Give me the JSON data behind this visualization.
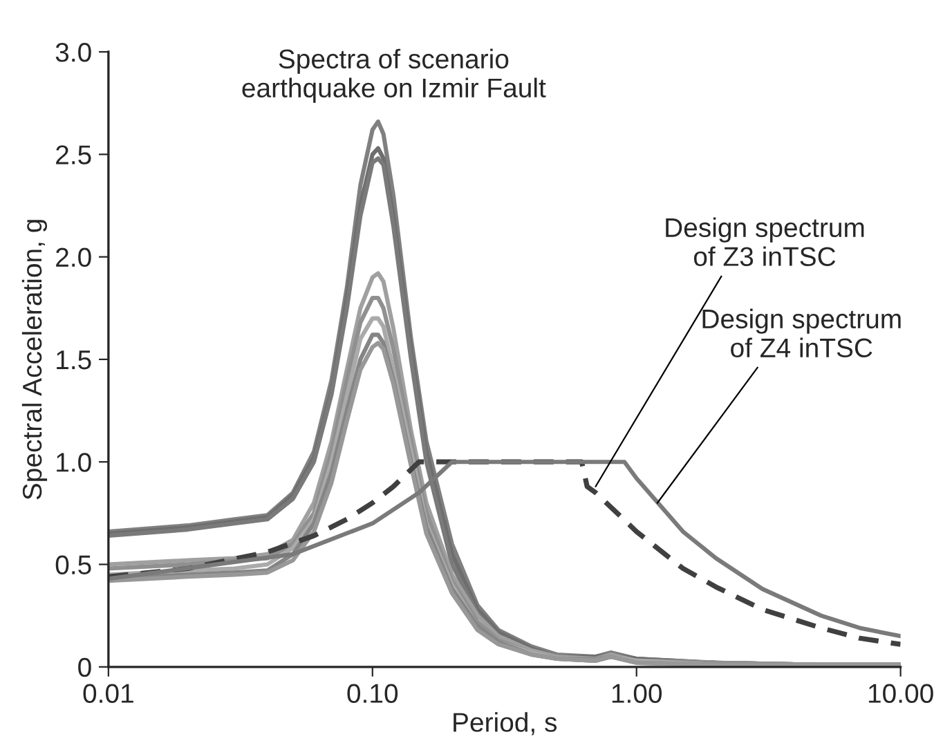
{
  "chart_data": {
    "type": "line",
    "xlabel": "Period, s",
    "ylabel": "Spectral Acceleration, g",
    "log": "x",
    "xlim": [
      0.01,
      10
    ],
    "xticks": [
      0.01,
      {
        "value": 0.1,
        "label": "0.10"
      },
      {
        "value": 1,
        "label": "1.00"
      },
      {
        "value": 10,
        "label": "10.00"
      }
    ],
    "ylim": [
      0,
      3
    ],
    "yticks": [
      0,
      0.5,
      {
        "value": 1,
        "label": "1.0"
      },
      1.5,
      {
        "value": 2,
        "label": "2.0"
      },
      2.5,
      {
        "value": 3,
        "label": "3.0"
      }
    ],
    "grid": false,
    "marker": "none",
    "series": [
      {
        "color": "#808080",
        "x": [
          0.01,
          0.02,
          0.03,
          0.04,
          0.05,
          0.06,
          0.07,
          0.08,
          0.09,
          0.1,
          0.105,
          0.11,
          0.12,
          0.14,
          0.16,
          0.2,
          0.25,
          0.3,
          0.4,
          0.5,
          0.7,
          0.8,
          1,
          2,
          5,
          10
        ],
        "values": [
          0.66,
          0.69,
          0.72,
          0.74,
          0.85,
          1.05,
          1.4,
          1.85,
          2.35,
          2.62,
          2.66,
          2.6,
          2.3,
          1.6,
          1.1,
          0.6,
          0.3,
          0.18,
          0.1,
          0.06,
          0.05,
          0.07,
          0.04,
          0.02,
          0.01,
          0.01
        ]
      },
      {
        "color": "#6e6e6e",
        "x": [
          0.01,
          0.02,
          0.03,
          0.04,
          0.05,
          0.06,
          0.07,
          0.08,
          0.09,
          0.1,
          0.105,
          0.11,
          0.12,
          0.14,
          0.16,
          0.2,
          0.25,
          0.3,
          0.4,
          0.5,
          0.7,
          0.8,
          1,
          2,
          5,
          10
        ],
        "values": [
          0.65,
          0.68,
          0.71,
          0.73,
          0.84,
          1.02,
          1.35,
          1.8,
          2.25,
          2.5,
          2.53,
          2.48,
          2.2,
          1.55,
          1.05,
          0.55,
          0.28,
          0.17,
          0.09,
          0.05,
          0.05,
          0.06,
          0.04,
          0.02,
          0.01,
          0.01
        ]
      },
      {
        "color": "#7a7a7a",
        "x": [
          0.01,
          0.02,
          0.03,
          0.04,
          0.05,
          0.06,
          0.07,
          0.08,
          0.09,
          0.1,
          0.105,
          0.11,
          0.12,
          0.14,
          0.16,
          0.2,
          0.25,
          0.3,
          0.4,
          0.5,
          0.7,
          0.8,
          1,
          2,
          5,
          10
        ],
        "values": [
          0.64,
          0.67,
          0.7,
          0.72,
          0.82,
          1.0,
          1.33,
          1.75,
          2.2,
          2.46,
          2.48,
          2.45,
          2.15,
          1.5,
          1.0,
          0.5,
          0.26,
          0.15,
          0.08,
          0.05,
          0.04,
          0.06,
          0.03,
          0.02,
          0.01,
          0.01
        ]
      },
      {
        "color": "#a0a0a0",
        "x": [
          0.01,
          0.02,
          0.03,
          0.04,
          0.05,
          0.06,
          0.07,
          0.08,
          0.09,
          0.1,
          0.105,
          0.11,
          0.12,
          0.14,
          0.16,
          0.2,
          0.25,
          0.3,
          0.4,
          0.5,
          0.7,
          0.8,
          1,
          2,
          5,
          10
        ],
        "values": [
          0.5,
          0.52,
          0.53,
          0.55,
          0.62,
          0.8,
          1.1,
          1.45,
          1.75,
          1.9,
          1.92,
          1.88,
          1.65,
          1.15,
          0.8,
          0.45,
          0.25,
          0.15,
          0.08,
          0.05,
          0.04,
          0.06,
          0.03,
          0.02,
          0.01,
          0.01
        ]
      },
      {
        "color": "#909090",
        "x": [
          0.01,
          0.02,
          0.03,
          0.04,
          0.05,
          0.06,
          0.07,
          0.08,
          0.09,
          0.1,
          0.105,
          0.11,
          0.12,
          0.14,
          0.16,
          0.2,
          0.25,
          0.3,
          0.4,
          0.5,
          0.7,
          0.8,
          1,
          2,
          5,
          10
        ],
        "values": [
          0.48,
          0.5,
          0.52,
          0.53,
          0.6,
          0.75,
          1.05,
          1.4,
          1.68,
          1.8,
          1.8,
          1.75,
          1.55,
          1.1,
          0.75,
          0.42,
          0.22,
          0.13,
          0.07,
          0.04,
          0.04,
          0.05,
          0.03,
          0.02,
          0.01,
          0.01
        ]
      },
      {
        "color": "#aaaaaa",
        "x": [
          0.01,
          0.02,
          0.03,
          0.04,
          0.05,
          0.06,
          0.07,
          0.08,
          0.09,
          0.1,
          0.105,
          0.11,
          0.12,
          0.14,
          0.16,
          0.2,
          0.25,
          0.3,
          0.4,
          0.5,
          0.7,
          0.8,
          1,
          2,
          5,
          10
        ],
        "values": [
          0.45,
          0.47,
          0.48,
          0.5,
          0.58,
          0.72,
          1.0,
          1.32,
          1.6,
          1.7,
          1.7,
          1.66,
          1.45,
          1.05,
          0.7,
          0.4,
          0.2,
          0.12,
          0.07,
          0.04,
          0.03,
          0.05,
          0.03,
          0.01,
          0.01,
          0.01
        ]
      },
      {
        "color": "#858585",
        "x": [
          0.01,
          0.02,
          0.03,
          0.04,
          0.05,
          0.06,
          0.07,
          0.08,
          0.09,
          0.1,
          0.105,
          0.11,
          0.12,
          0.14,
          0.16,
          0.2,
          0.25,
          0.3,
          0.4,
          0.5,
          0.7,
          0.8,
          1,
          2,
          5,
          10
        ],
        "values": [
          0.43,
          0.45,
          0.46,
          0.47,
          0.55,
          0.7,
          0.95,
          1.25,
          1.5,
          1.62,
          1.62,
          1.58,
          1.4,
          1.0,
          0.68,
          0.38,
          0.2,
          0.12,
          0.06,
          0.04,
          0.03,
          0.05,
          0.02,
          0.01,
          0.01,
          0.01
        ]
      },
      {
        "color": "#989898",
        "x": [
          0.01,
          0.02,
          0.03,
          0.04,
          0.05,
          0.06,
          0.07,
          0.08,
          0.09,
          0.1,
          0.105,
          0.11,
          0.12,
          0.14,
          0.16,
          0.2,
          0.25,
          0.3,
          0.4,
          0.5,
          0.7,
          0.8,
          1,
          2,
          5,
          10
        ],
        "values": [
          0.42,
          0.44,
          0.45,
          0.46,
          0.52,
          0.66,
          0.9,
          1.2,
          1.45,
          1.56,
          1.58,
          1.55,
          1.38,
          0.98,
          0.65,
          0.36,
          0.18,
          0.11,
          0.06,
          0.04,
          0.03,
          0.05,
          0.02,
          0.01,
          0.01,
          0.01
        ]
      },
      {
        "color": "#404040",
        "line_style": "dashed",
        "x": [
          0.01,
          0.02,
          0.04,
          0.06,
          0.08,
          0.1,
          0.12,
          0.15,
          0.62,
          0.65,
          0.7,
          1,
          1.5,
          2,
          3,
          5,
          7,
          10
        ],
        "values": [
          0.44,
          0.48,
          0.56,
          0.64,
          0.72,
          0.8,
          0.88,
          1.0,
          1.0,
          0.88,
          0.85,
          0.66,
          0.48,
          0.39,
          0.28,
          0.19,
          0.14,
          0.11
        ]
      },
      {
        "color": "#7a7a7a",
        "x": [
          0.01,
          0.05,
          0.1,
          0.15,
          0.2,
          0.9,
          1,
          1.5,
          2,
          3,
          5,
          7,
          10
        ],
        "values": [
          0.43,
          0.55,
          0.7,
          0.85,
          1.0,
          1.0,
          0.92,
          0.66,
          0.53,
          0.38,
          0.25,
          0.19,
          0.15
        ]
      }
    ],
    "annotations": [
      "Spectra of scenario\nearthquake on Izmir Fault",
      {
        "text": "Design spectrum\nof Z3 inTSC",
        "x": 0.7,
        "y": 0.88
      },
      {
        "text": "Design spectrum\nof Z4 inTSC",
        "x": 1.2,
        "y": 0.8
      }
    ]
  }
}
